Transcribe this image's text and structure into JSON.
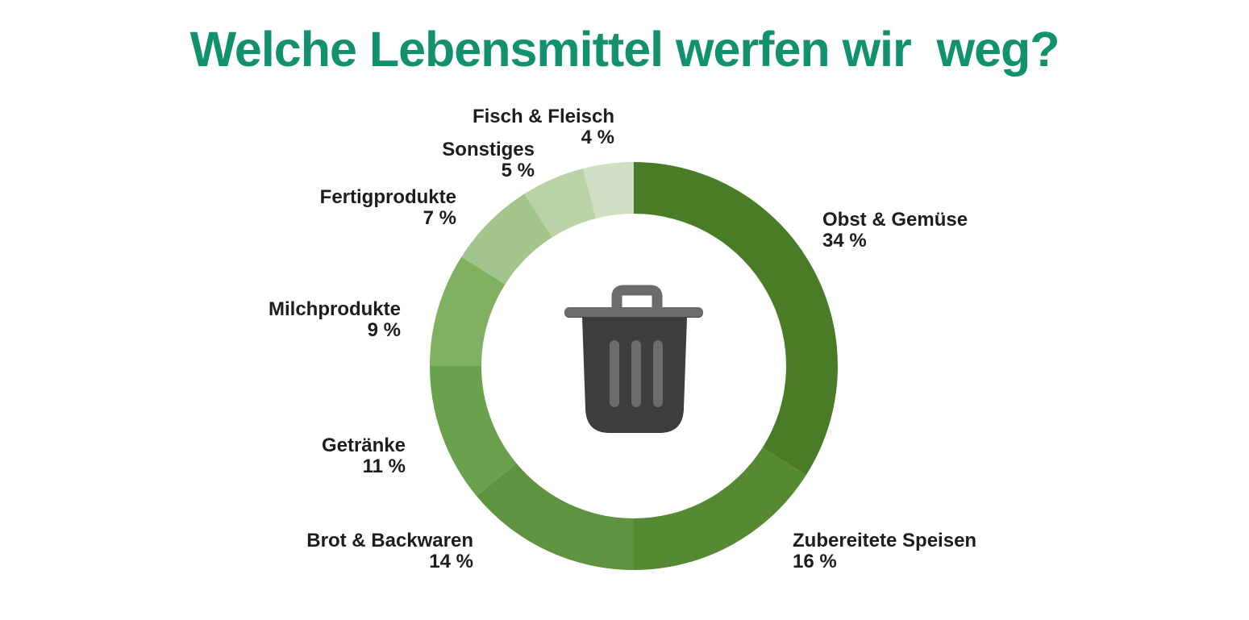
{
  "page": {
    "background_color": "#ffffff"
  },
  "title": {
    "text": "Welche Lebensmittel werfen wir  weg?",
    "color": "#11916d"
  },
  "chart_data": {
    "type": "pie",
    "subtype": "donut",
    "title": "Welche Lebensmittel werfen wir  weg?",
    "unit": "%",
    "direction": "clockwise",
    "start_angle_deg": 0,
    "legend_position": "outside-labels",
    "center_icon": "trash-can-icon",
    "categories": [
      "Obst & Gemüse",
      "Zubereitete Speisen",
      "Brot & Backwaren",
      "Getränke",
      "Milchprodukte",
      "Fertigprodukte",
      "Sonstiges",
      "Fisch & Fleisch"
    ],
    "values": [
      34,
      16,
      14,
      11,
      9,
      7,
      5,
      4
    ],
    "slices": [
      {
        "label": "Obst & Gemüse",
        "value": 34,
        "pct_text": "34 %",
        "color": "#4a7c28"
      },
      {
        "label": "Zubereitete Speisen",
        "value": 16,
        "pct_text": "16 %",
        "color": "#558a33"
      },
      {
        "label": "Brot & Backwaren",
        "value": 14,
        "pct_text": "14 %",
        "color": "#5f9340"
      },
      {
        "label": "Getränke",
        "value": 11,
        "pct_text": "11 %",
        "color": "#69a14c"
      },
      {
        "label": "Milchprodukte",
        "value": 9,
        "pct_text": "9 %",
        "color": "#7fb161"
      },
      {
        "label": "Fertigprodukte",
        "value": 7,
        "pct_text": "7 %",
        "color": "#a2c58b"
      },
      {
        "label": "Sonstiges",
        "value": 5,
        "pct_text": "5 %",
        "color": "#b9d2a6"
      },
      {
        "label": "Fisch & Fleisch",
        "value": 4,
        "pct_text": "4 %",
        "color": "#cfdfc3"
      }
    ]
  },
  "icons": {
    "trash_can": {
      "body_color": "#3d3d3d",
      "accent_color": "#6c6c6c"
    }
  }
}
